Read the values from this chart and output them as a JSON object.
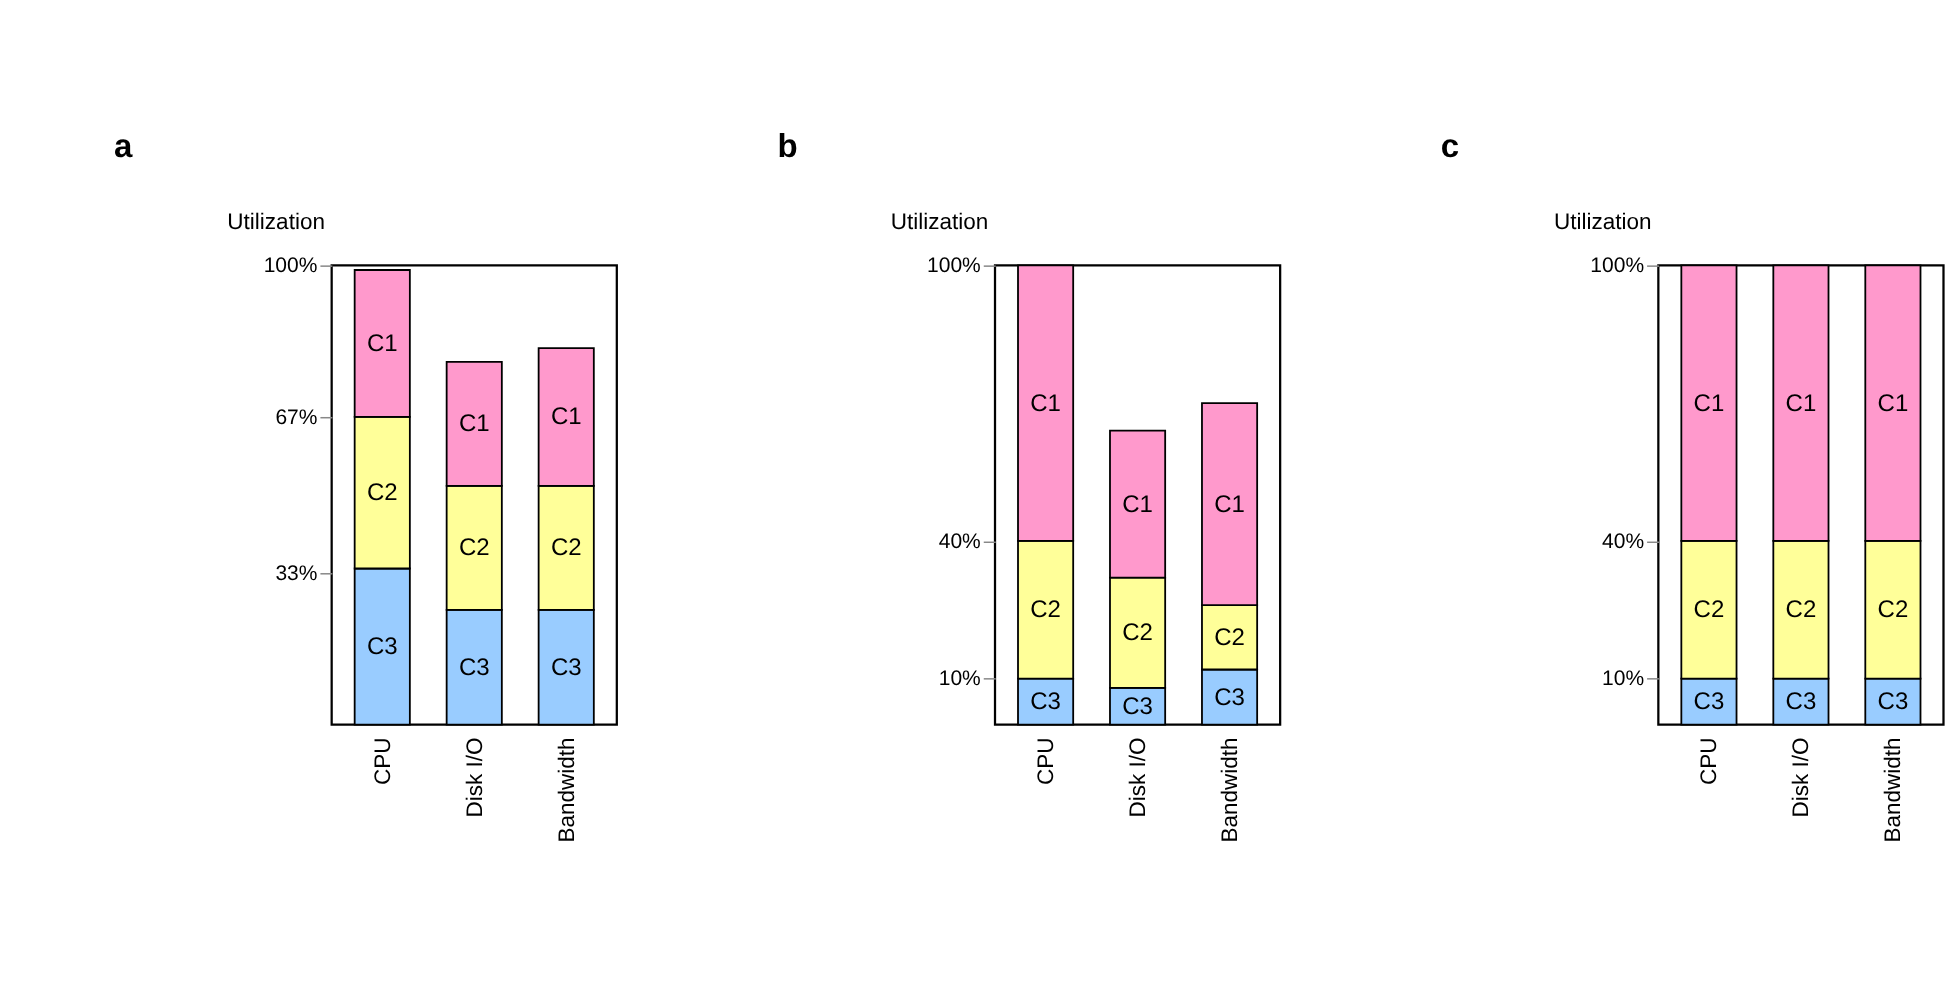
{
  "chart_data": [
    {
      "type": "bar",
      "title": "a",
      "ylabel": "Utilization",
      "stacked": true,
      "categories": [
        "CPU",
        "Disk I/O",
        "Bandwidth"
      ],
      "series": [
        {
          "name": "C3",
          "color": "#99ccff",
          "values": [
            34,
            25,
            25
          ]
        },
        {
          "name": "C2",
          "color": "#ffff99",
          "values": [
            33,
            27,
            27
          ]
        },
        {
          "name": "C1",
          "color": "#ff99cc",
          "values": [
            32,
            27,
            30
          ]
        }
      ],
      "ylim": [
        0,
        100
      ],
      "yticks": [
        {
          "value": 33,
          "label": "33%"
        },
        {
          "value": 67,
          "label": "67%"
        },
        {
          "value": 100,
          "label": "100%"
        }
      ],
      "grid": false,
      "legend": false
    },
    {
      "type": "bar",
      "title": "b",
      "ylabel": "Utilization",
      "stacked": true,
      "categories": [
        "CPU",
        "Disk I/O",
        "Bandwidth"
      ],
      "series": [
        {
          "name": "C3",
          "color": "#99ccff",
          "values": [
            10,
            8,
            12
          ]
        },
        {
          "name": "C2",
          "color": "#ffff99",
          "values": [
            30,
            24,
            14
          ]
        },
        {
          "name": "C1",
          "color": "#ff99cc",
          "values": [
            60,
            32,
            44
          ]
        }
      ],
      "ylim": [
        0,
        100
      ],
      "yticks": [
        {
          "value": 10,
          "label": "10%"
        },
        {
          "value": 40,
          "label": "40%"
        },
        {
          "value": 100,
          "label": "100%"
        }
      ],
      "grid": false,
      "legend": false
    },
    {
      "type": "bar",
      "title": "c",
      "ylabel": "Utilization",
      "stacked": true,
      "categories": [
        "CPU",
        "Disk I/O",
        "Bandwidth"
      ],
      "series": [
        {
          "name": "C3",
          "color": "#99ccff",
          "values": [
            10,
            10,
            10
          ]
        },
        {
          "name": "C2",
          "color": "#ffff99",
          "values": [
            30,
            30,
            30
          ]
        },
        {
          "name": "C1",
          "color": "#ff99cc",
          "values": [
            60,
            60,
            60
          ]
        }
      ],
      "ylim": [
        0,
        100
      ],
      "yticks": [
        {
          "value": 10,
          "label": "10%"
        },
        {
          "value": 40,
          "label": "40%"
        },
        {
          "value": 100,
          "label": "100%"
        }
      ],
      "grid": false,
      "legend": false
    }
  ]
}
